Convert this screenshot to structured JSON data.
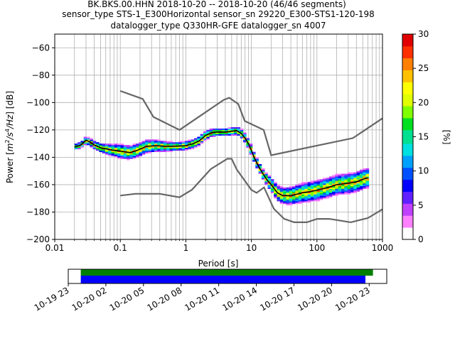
{
  "chart_data": {
    "type": "heatmap",
    "title_lines": [
      "BK.BKS.00.HHN   2018-10-20 -- 2018-10-20  (46/46 segments)",
      "sensor_type STS-1_E300Horizontal sensor_sn 29220_E300-STS1-120-198",
      "datalogger_type Q330HR-GFE datalogger_sn 4007"
    ],
    "xlabel": "Period [s]",
    "ylabel_parts": [
      "Power [",
      "m",
      "2",
      "/s",
      "4",
      "/Hz",
      "] [dB]"
    ],
    "x_scale": "log",
    "xlim": [
      0.01,
      1000
    ],
    "ylim": [
      -200,
      -50
    ],
    "x_ticks": [
      {
        "value": 0.01,
        "label": "0.01"
      },
      {
        "value": 0.1,
        "label": "0.1"
      },
      {
        "value": 1,
        "label": "1"
      },
      {
        "value": 10,
        "label": "10"
      },
      {
        "value": 100,
        "label": "100"
      },
      {
        "value": 1000,
        "label": "1000"
      }
    ],
    "y_ticks": [
      {
        "value": -60,
        "label": "−60"
      },
      {
        "value": -80,
        "label": "−80"
      },
      {
        "value": -100,
        "label": "−100"
      },
      {
        "value": -120,
        "label": "−120"
      },
      {
        "value": -140,
        "label": "−140"
      },
      {
        "value": -160,
        "label": "−160"
      },
      {
        "value": -180,
        "label": "−180"
      },
      {
        "value": -200,
        "label": "−200"
      }
    ],
    "grid": true,
    "colorbar": {
      "label": "[%]",
      "range": [
        0,
        30
      ],
      "ticks": [
        {
          "value": 0,
          "label": "0"
        },
        {
          "value": 5,
          "label": "5"
        },
        {
          "value": 10,
          "label": "10"
        },
        {
          "value": 15,
          "label": "15"
        },
        {
          "value": 20,
          "label": "20"
        },
        {
          "value": 25,
          "label": "25"
        },
        {
          "value": 30,
          "label": "30"
        }
      ],
      "colors": [
        "#ffffff",
        "#ff80ff",
        "#c040ff",
        "#6020ff",
        "#0000ff",
        "#0050ff",
        "#00a0ff",
        "#00e0e0",
        "#00e090",
        "#00e020",
        "#80ff00",
        "#e0ff00",
        "#ffff00",
        "#ffc000",
        "#ff8000",
        "#ff3000",
        "#e00000"
      ]
    },
    "nhnm": [
      [
        0.1,
        -91.5
      ],
      [
        0.22,
        -97.4
      ],
      [
        0.32,
        -110.5
      ],
      [
        0.8,
        -120
      ],
      [
        3.8,
        -98
      ],
      [
        4.6,
        -96.5
      ],
      [
        6.3,
        -101
      ],
      [
        7.9,
        -113.5
      ],
      [
        15.4,
        -120
      ],
      [
        20,
        -138.5
      ],
      [
        354,
        -126
      ],
      [
        1000,
        -111.5
      ]
    ],
    "nlnm": [
      [
        0.1,
        -168
      ],
      [
        0.17,
        -166.7
      ],
      [
        0.4,
        -166.7
      ],
      [
        0.8,
        -169.2
      ],
      [
        1.24,
        -163.7
      ],
      [
        2.4,
        -148.6
      ],
      [
        4.3,
        -141.1
      ],
      [
        5,
        -141.1
      ],
      [
        6,
        -149
      ],
      [
        10,
        -163.8
      ],
      [
        12,
        -166
      ],
      [
        15.6,
        -162
      ],
      [
        21.9,
        -177.5
      ],
      [
        31.6,
        -185
      ],
      [
        45,
        -187.5
      ],
      [
        70,
        -187.5
      ],
      [
        101,
        -185
      ],
      [
        154,
        -185
      ],
      [
        328,
        -187.5
      ],
      [
        600,
        -184.4
      ],
      [
        1000,
        -178
      ]
    ],
    "psd_median": [
      [
        0.02,
        -132.5
      ],
      [
        0.025,
        -131
      ],
      [
        0.028,
        -129
      ],
      [
        0.03,
        -127.5
      ],
      [
        0.035,
        -129
      ],
      [
        0.04,
        -131
      ],
      [
        0.05,
        -133
      ],
      [
        0.07,
        -134.5
      ],
      [
        0.1,
        -135.5
      ],
      [
        0.14,
        -136.5
      ],
      [
        0.18,
        -135
      ],
      [
        0.25,
        -132
      ],
      [
        0.35,
        -131.5
      ],
      [
        0.5,
        -132
      ],
      [
        0.7,
        -132
      ],
      [
        1,
        -131.5
      ],
      [
        1.3,
        -130
      ],
      [
        1.6,
        -128
      ],
      [
        2,
        -124
      ],
      [
        2.5,
        -122
      ],
      [
        3,
        -121.5
      ],
      [
        4,
        -121.5
      ],
      [
        5,
        -121
      ],
      [
        6,
        -120.5
      ],
      [
        7,
        -122.5
      ],
      [
        8,
        -126
      ],
      [
        9,
        -130
      ],
      [
        10,
        -135
      ],
      [
        11,
        -140
      ],
      [
        13,
        -147
      ],
      [
        15,
        -152
      ],
      [
        17,
        -156
      ],
      [
        20,
        -160
      ],
      [
        25,
        -166
      ],
      [
        30,
        -168
      ],
      [
        40,
        -168
      ],
      [
        60,
        -166
      ],
      [
        80,
        -165
      ],
      [
        100,
        -164
      ],
      [
        150,
        -162
      ],
      [
        200,
        -160
      ],
      [
        300,
        -159
      ],
      [
        400,
        -158
      ],
      [
        500,
        -156
      ],
      [
        600,
        -155
      ]
    ],
    "psd_spread": [
      [
        0.02,
        2
      ],
      [
        0.03,
        4
      ],
      [
        0.05,
        5
      ],
      [
        0.07,
        7
      ],
      [
        0.1,
        9
      ],
      [
        0.14,
        9
      ],
      [
        0.2,
        9
      ],
      [
        0.3,
        8
      ],
      [
        0.5,
        6
      ],
      [
        0.7,
        5
      ],
      [
        1,
        5
      ],
      [
        1.5,
        5
      ],
      [
        2,
        5
      ],
      [
        3,
        4
      ],
      [
        5,
        4
      ],
      [
        7,
        5
      ],
      [
        10,
        6
      ],
      [
        15,
        6
      ],
      [
        20,
        9
      ],
      [
        30,
        11
      ],
      [
        50,
        13
      ],
      [
        80,
        14
      ],
      [
        100,
        14
      ],
      [
        200,
        14
      ],
      [
        400,
        14
      ],
      [
        600,
        14
      ]
    ],
    "timeline": {
      "tick_labels": [
        "10-19 23",
        "10-20 02",
        "10-20 05",
        "10-20 08",
        "10-20 11",
        "10-20 14",
        "10-20 17",
        "10-20 20",
        "10-20 23"
      ],
      "tick_hours": [
        23,
        26,
        29,
        32,
        35,
        38,
        41,
        44,
        47
      ],
      "xlim_hours": [
        23.0,
        48.4
      ],
      "data_bar": {
        "start": 24.0,
        "end": 47.3,
        "color": "#008000"
      },
      "psd_bar": {
        "start": 24.0,
        "end": 46.7,
        "color": "#0000ff"
      }
    }
  }
}
